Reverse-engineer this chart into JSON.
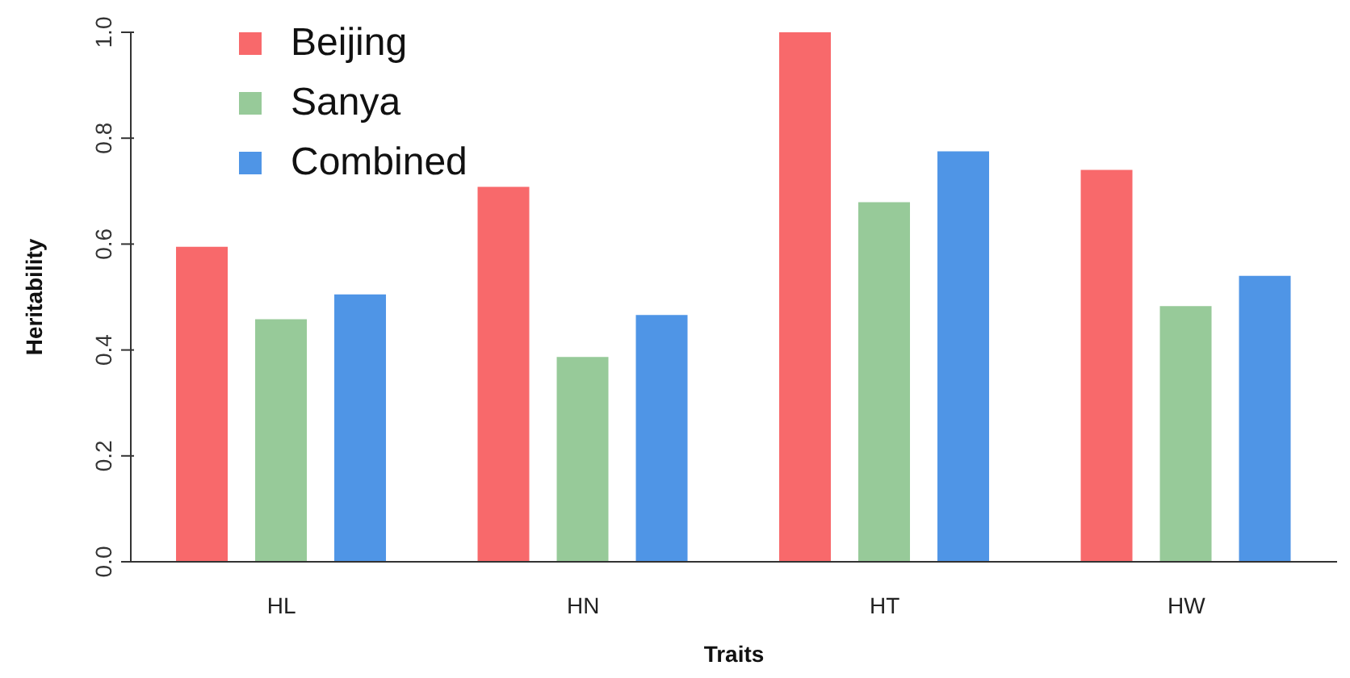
{
  "chart_data": {
    "type": "bar",
    "xlabel": "Traits",
    "ylabel": "Heritability",
    "categories": [
      "HL",
      "HN",
      "HT",
      "HW"
    ],
    "series": [
      {
        "name": "Beijing",
        "color": "#f8696b",
        "values": [
          0.595,
          0.708,
          1.0,
          0.74
        ]
      },
      {
        "name": "Sanya",
        "color": "#97ca99",
        "values": [
          0.458,
          0.387,
          0.679,
          0.483
        ]
      },
      {
        "name": "Combined",
        "color": "#4f95e6",
        "values": [
          0.505,
          0.466,
          0.775,
          0.54
        ]
      }
    ],
    "ylim": [
      0,
      1
    ],
    "yticks": [
      {
        "value": 0,
        "label": "0.0"
      },
      {
        "value": 0.2,
        "label": "0.2"
      },
      {
        "value": 0.4,
        "label": "0.4"
      },
      {
        "value": 0.6,
        "label": "0.6"
      },
      {
        "value": 0.8,
        "label": "0.8"
      },
      {
        "value": 1,
        "label": "1.0"
      }
    ],
    "grid": false,
    "legend": "top left"
  }
}
